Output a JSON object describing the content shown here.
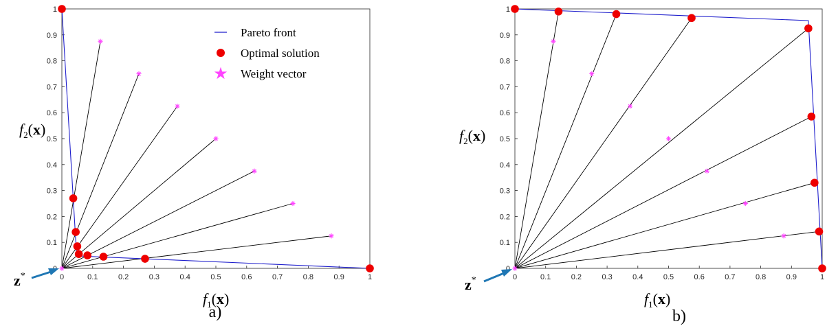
{
  "colors": {
    "front": "#1f1fcc",
    "optimal": "#ee0000",
    "weight": "#ff44ff",
    "ray": "#000000",
    "zarrow": "#1f77b4"
  },
  "chart_data": [
    {
      "type": "line",
      "panel_label": "a)",
      "xlabel": "f1(x)",
      "ylabel": "f2(x)",
      "ideal_point_label": "z*",
      "xlim": [
        0,
        1
      ],
      "ylim": [
        0,
        1
      ],
      "xticks": [
        "0",
        "0.1",
        "0.2",
        "0.3",
        "0.4",
        "0.5",
        "0.6",
        "0.7",
        "0.8",
        "0.9",
        "1"
      ],
      "yticks": [
        "0",
        "0.1",
        "0.2",
        "0.3",
        "0.4",
        "0.5",
        "0.6",
        "0.7",
        "0.8",
        "0.9",
        "1"
      ],
      "grid": false,
      "legend": {
        "placement": "top-right",
        "entries": [
          {
            "label": "Pareto front",
            "marker": "line",
            "color": "#1f1fcc"
          },
          {
            "label": "Optimal solution",
            "marker": "dot",
            "color": "#ee0000"
          },
          {
            "label": "Weight vector",
            "marker": "star",
            "color": "#ff44ff"
          }
        ]
      },
      "pareto_front": {
        "x": [
          0,
          0.048,
          1
        ],
        "y": [
          1,
          0.048,
          0
        ]
      },
      "weight_vectors": {
        "x": [
          0.125,
          0.25,
          0.375,
          0.5,
          0.625,
          0.75,
          0.875
        ],
        "y": [
          0.875,
          0.75,
          0.625,
          0.5,
          0.375,
          0.25,
          0.125
        ]
      },
      "optimal_solutions": {
        "x": [
          0,
          0.037,
          0.045,
          0.05,
          0.055,
          0.083,
          0.135,
          0.27,
          1
        ],
        "y": [
          1,
          0.27,
          0.14,
          0.085,
          0.055,
          0.05,
          0.045,
          0.037,
          0
        ]
      },
      "rays_to": [
        [
          0.125,
          0.875
        ],
        [
          0.25,
          0.75
        ],
        [
          0.375,
          0.625
        ],
        [
          0.5,
          0.5
        ],
        [
          0.625,
          0.375
        ],
        [
          0.75,
          0.25
        ],
        [
          0.875,
          0.125
        ]
      ]
    },
    {
      "type": "line",
      "panel_label": "b)",
      "xlabel": "f1(x)",
      "ylabel": "f2(x)",
      "ideal_point_label": "z*",
      "xlim": [
        0,
        1
      ],
      "ylim": [
        0,
        1
      ],
      "xticks": [
        "0",
        "0.1",
        "0.2",
        "0.3",
        "0.4",
        "0.5",
        "0.6",
        "0.7",
        "0.8",
        "0.9",
        "1"
      ],
      "yticks": [
        "0",
        "0.1",
        "0.2",
        "0.3",
        "0.4",
        "0.5",
        "0.6",
        "0.7",
        "0.8",
        "0.9",
        "1"
      ],
      "grid": false,
      "pareto_front": {
        "x": [
          0,
          0.955,
          1
        ],
        "y": [
          1,
          0.955,
          0
        ]
      },
      "weight_vectors": {
        "x": [
          0.125,
          0.25,
          0.375,
          0.5,
          0.625,
          0.75,
          0.875
        ],
        "y": [
          0.875,
          0.75,
          0.625,
          0.5,
          0.375,
          0.25,
          0.125
        ]
      },
      "optimal_solutions": {
        "x": [
          0,
          0.142,
          0.33,
          0.575,
          0.955,
          0.965,
          0.975,
          0.99,
          1
        ],
        "y": [
          1,
          0.99,
          0.98,
          0.965,
          0.925,
          0.585,
          0.33,
          0.142,
          0
        ]
      },
      "rays_to": [
        [
          0.142,
          0.99
        ],
        [
          0.33,
          0.98
        ],
        [
          0.575,
          0.965
        ],
        [
          0.955,
          0.925
        ],
        [
          0.965,
          0.585
        ],
        [
          0.975,
          0.33
        ],
        [
          0.99,
          0.142
        ]
      ]
    }
  ]
}
